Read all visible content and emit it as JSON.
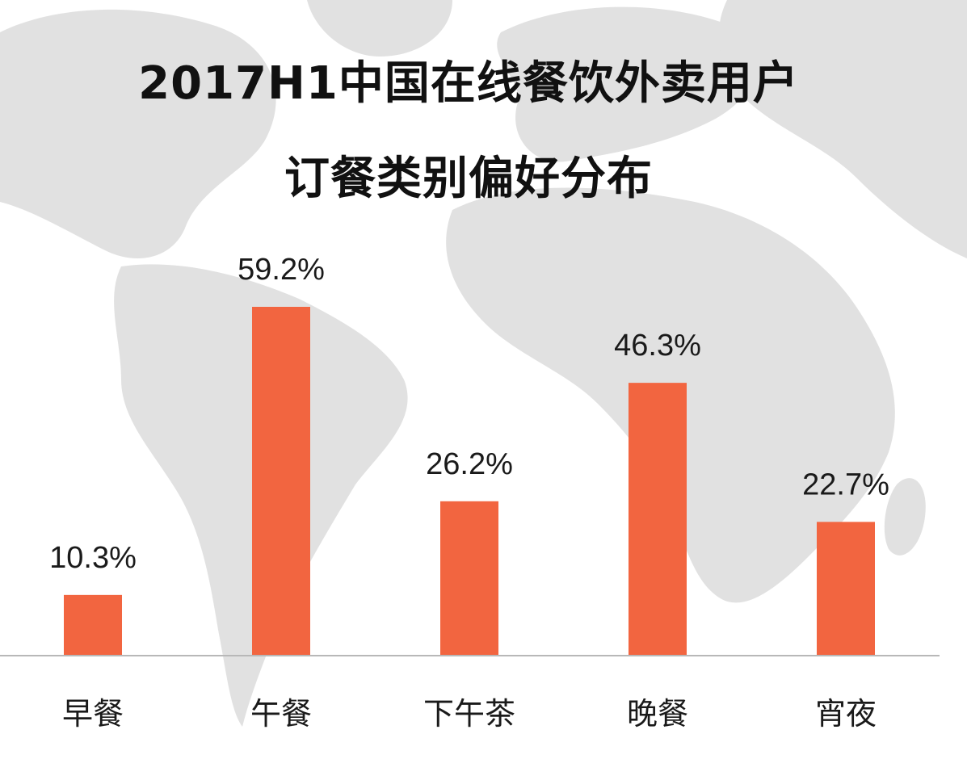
{
  "title_lines": [
    "2017H1中国在线餐饮外卖用户",
    "订餐类别偏好分布"
  ],
  "colors": {
    "bar": "#f26540",
    "axis": "#b8b8b8",
    "map": "#d9d9d9"
  },
  "chart_data": {
    "type": "bar",
    "title": "2017H1中国在线餐饮外卖用户订餐类别偏好分布",
    "categories": [
      "早餐",
      "午餐",
      "下午茶",
      "晚餐",
      "宵夜"
    ],
    "values": [
      10.3,
      59.2,
      26.2,
      46.3,
      22.7
    ],
    "value_labels": [
      "10.3%",
      "59.2%",
      "26.2%",
      "46.3%",
      "22.7%"
    ],
    "unit": "%",
    "xlabel": "",
    "ylabel": "",
    "ylim": [
      0,
      59.2
    ],
    "grid": false,
    "legend": "none"
  }
}
